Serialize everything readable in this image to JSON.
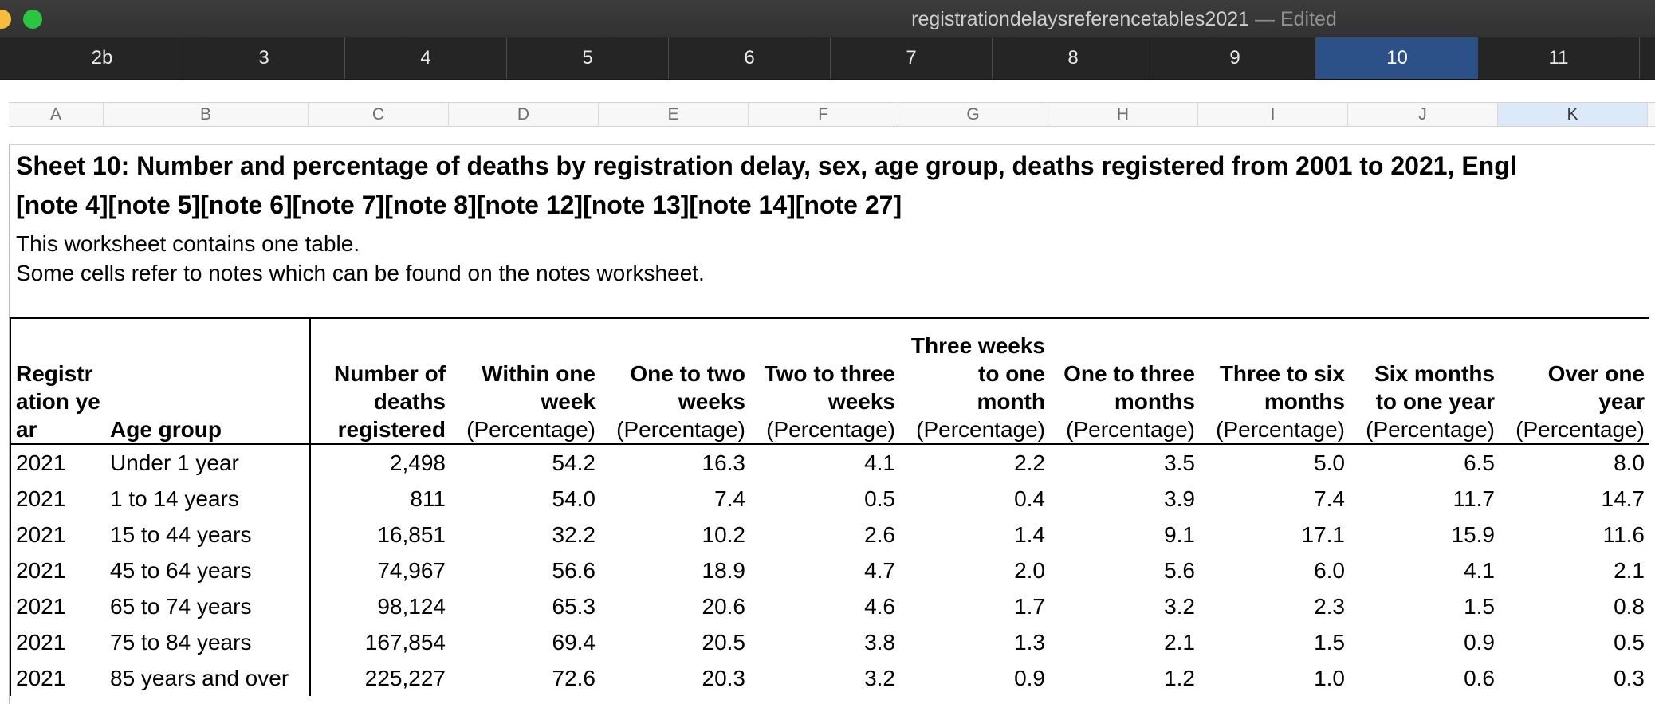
{
  "window": {
    "title": "registrationdelaysreferencetables2021",
    "status": "— Edited"
  },
  "tabs": [
    "2b",
    "3",
    "4",
    "5",
    "6",
    "7",
    "8",
    "9",
    "10",
    "11"
  ],
  "active_tab": "10",
  "columns": [
    "A",
    "B",
    "C",
    "D",
    "E",
    "F",
    "G",
    "H",
    "I",
    "J",
    "K"
  ],
  "active_column": "K",
  "sheet": {
    "title_line1": "Sheet 10: Number and percentage of deaths by registration delay, sex, age group, deaths registered from 2001 to 2021, Engl",
    "title_line2": "[note 4][note 5][note 6][note 7][note 8][note 12][note 13][note 14][note 27]",
    "description1": "This worksheet contains one table.",
    "description2": "Some cells refer to notes which can be found on the notes worksheet."
  },
  "table": {
    "headers": [
      {
        "label": "Registration year",
        "sub": ""
      },
      {
        "label": "Age group",
        "sub": ""
      },
      {
        "label": "Number of deaths registered",
        "sub": ""
      },
      {
        "label": "Within one week",
        "sub": "(Percentage)"
      },
      {
        "label": "One to two weeks",
        "sub": "(Percentage)"
      },
      {
        "label": "Two to three weeks",
        "sub": "(Percentage)"
      },
      {
        "label": "Three weeks to one month",
        "sub": "(Percentage)"
      },
      {
        "label": "One to three months",
        "sub": "(Percentage)"
      },
      {
        "label": "Three to six months",
        "sub": "(Percentage)"
      },
      {
        "label": "Six months to one year",
        "sub": "(Percentage)"
      },
      {
        "label": "Over one year",
        "sub": "(Percentage)"
      }
    ],
    "rows": [
      [
        "2021",
        "Under 1 year",
        "2,498",
        "54.2",
        "16.3",
        "4.1",
        "2.2",
        "3.5",
        "5.0",
        "6.5",
        "8.0"
      ],
      [
        "2021",
        "1 to 14 years",
        "811",
        "54.0",
        "7.4",
        "0.5",
        "0.4",
        "3.9",
        "7.4",
        "11.7",
        "14.7"
      ],
      [
        "2021",
        "15 to 44 years",
        "16,851",
        "32.2",
        "10.2",
        "2.6",
        "1.4",
        "9.1",
        "17.1",
        "15.9",
        "11.6"
      ],
      [
        "2021",
        "45 to 64 years",
        "74,967",
        "56.6",
        "18.9",
        "4.7",
        "2.0",
        "5.6",
        "6.0",
        "4.1",
        "2.1"
      ],
      [
        "2021",
        "65 to 74 years",
        "98,124",
        "65.3",
        "20.6",
        "4.6",
        "1.7",
        "3.2",
        "2.3",
        "1.5",
        "0.8"
      ],
      [
        "2021",
        "75 to 84 years",
        "167,854",
        "69.4",
        "20.5",
        "3.8",
        "1.3",
        "2.1",
        "1.5",
        "0.9",
        "0.5"
      ],
      [
        "2021",
        "85 years and over",
        "225,227",
        "72.6",
        "20.3",
        "3.2",
        "0.9",
        "1.2",
        "1.0",
        "0.6",
        "0.3"
      ]
    ]
  }
}
